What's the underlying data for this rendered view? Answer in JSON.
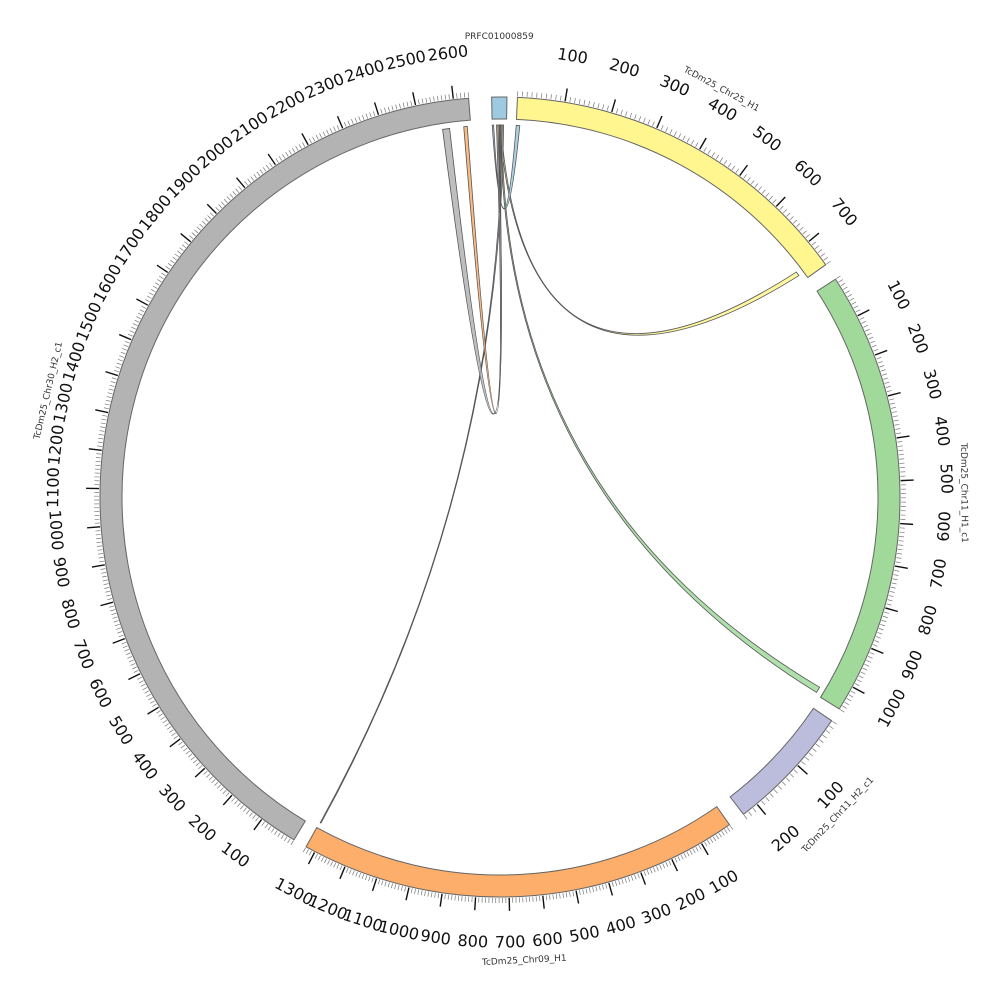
{
  "diagram": {
    "type": "circos",
    "segments": [
      {
        "id": "seg-prfc",
        "name": "PRFC01000859",
        "length": 10,
        "color": "#9ecae1",
        "tick_step": null,
        "label_mode": "horizontal"
      },
      {
        "id": "seg-chr25",
        "name": "TcDm25_Chr25_H1",
        "length": 760,
        "color": "#fff68f",
        "tick_step": 100,
        "label_mode": "tangent"
      },
      {
        "id": "seg-chr11h1",
        "name": "TcDm25_Chr11_H1_c1",
        "length": 1060,
        "color": "#a1d99b",
        "tick_step": 100,
        "label_mode": "tangent"
      },
      {
        "id": "seg-chr11h2",
        "name": "TcDm25_Chr11_H2_c1",
        "length": 230,
        "color": "#bcbddc",
        "tick_step": 100,
        "label_mode": "tangent"
      },
      {
        "id": "seg-chr09",
        "name": "TcDm25_Chr09_H1",
        "length": 1330,
        "color": "#fdae6b",
        "tick_step": 100,
        "label_mode": "tangent"
      },
      {
        "id": "seg-chr30",
        "name": "TcDm25_Chr30_H2_c1",
        "length": 2640,
        "color": "#b3b3b3",
        "tick_step": 100,
        "label_mode": "tangent"
      }
    ],
    "links": [
      {
        "id": "link-chr25",
        "from": {
          "seg": "seg-prfc",
          "start": 5,
          "end": 6
        },
        "to": {
          "seg": "seg-chr25",
          "start": 735,
          "end": 745
        },
        "color": "#fff68f"
      },
      {
        "id": "link-chr11h1",
        "from": {
          "seg": "seg-prfc",
          "start": 6,
          "end": 7
        },
        "to": {
          "seg": "seg-chr11h1",
          "start": 1040,
          "end": 1055
        },
        "color": "#a1d99b"
      },
      {
        "id": "link-chr11h2",
        "from": {
          "seg": "seg-prfc",
          "start": 7,
          "end": 8
        },
        "to": {
          "seg": "seg-chr09",
          "start": 1325,
          "end": 1328
        },
        "color": "#bcbddc"
      },
      {
        "id": "link-self-blue",
        "from": {
          "seg": "seg-prfc",
          "start": 0,
          "end": 1
        },
        "to": {
          "seg": "seg-chr25",
          "start": 0,
          "end": 8
        },
        "color": "#9ecae1"
      },
      {
        "id": "link-self-orange",
        "from": {
          "seg": "seg-prfc",
          "start": 4,
          "end": 5
        },
        "to": {
          "seg": "seg-chr30",
          "start": 2620,
          "end": 2630
        },
        "color": "#fdae6b"
      },
      {
        "id": "link-self-gray",
        "from": {
          "seg": "seg-prfc",
          "start": 3,
          "end": 4
        },
        "to": {
          "seg": "seg-chr30",
          "start": 2560,
          "end": 2580
        },
        "color": "#b3b3b3"
      },
      {
        "id": "link-self-brown",
        "from": {
          "seg": "seg-prfc",
          "start": 5,
          "end": 6
        },
        "to": {
          "seg": "seg-prfc",
          "start": 5,
          "end": 6
        },
        "color": "#8c6d4f"
      }
    ]
  }
}
